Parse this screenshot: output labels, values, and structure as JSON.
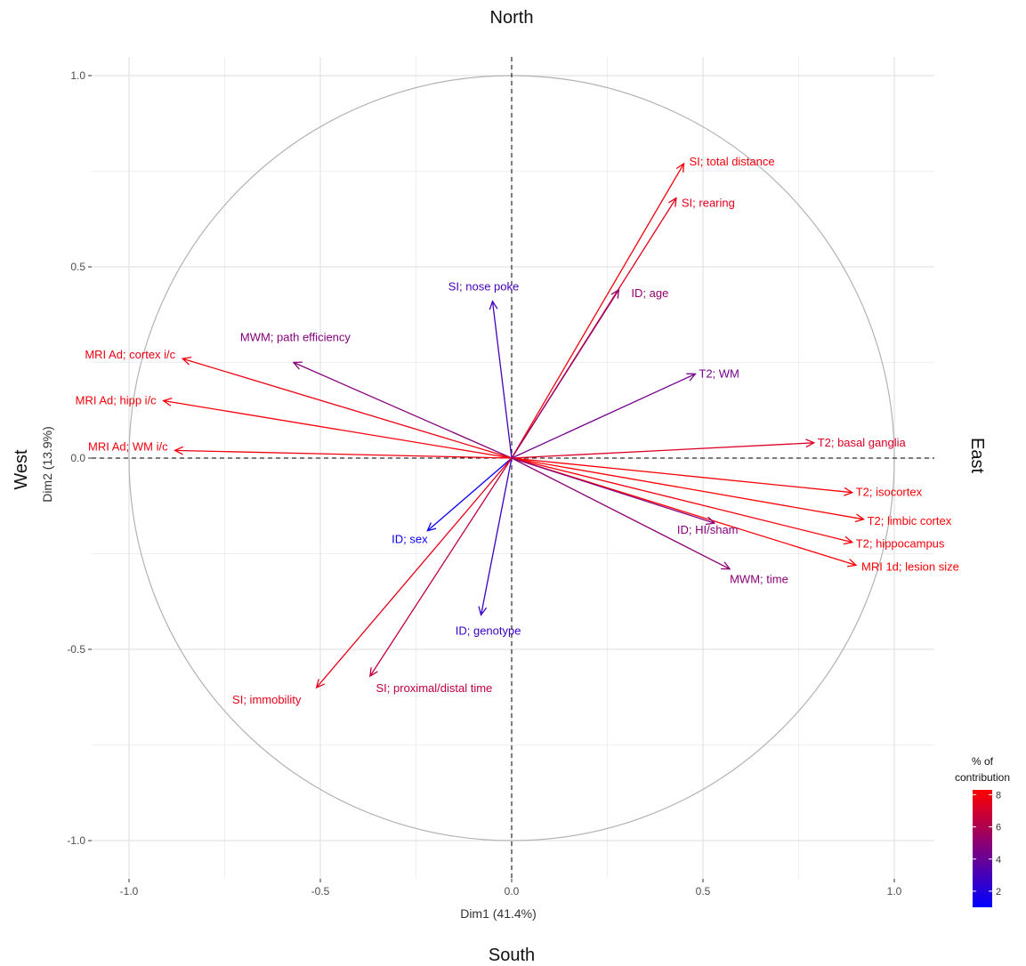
{
  "chart_data": {
    "type": "pca-correlation-circle",
    "xlabel": "Dim1 (41.4%)",
    "ylabel": "Dim2 (13.9%)",
    "xlim": [
      -1.0,
      1.0
    ],
    "ylim": [
      -1.0,
      1.0
    ],
    "x_ticks": [
      {
        "value": -1.0,
        "label": "-1.0"
      },
      {
        "value": -0.5,
        "label": "-0.5"
      },
      {
        "value": 0.0,
        "label": "0.0"
      },
      {
        "value": 0.5,
        "label": "0.5"
      },
      {
        "value": 1.0,
        "label": "1.0"
      }
    ],
    "y_ticks": [
      {
        "value": 1.0,
        "label": "1.0"
      },
      {
        "value": 0.5,
        "label": "0.5"
      },
      {
        "value": 0.0,
        "label": "0.0"
      },
      {
        "value": -0.5,
        "label": "-0.5"
      },
      {
        "value": -1.0,
        "label": "-1.0"
      }
    ],
    "grid": true,
    "directions": {
      "north": "North",
      "south": "South",
      "west": "West",
      "east": "East"
    },
    "legend": {
      "title_line1": "% of",
      "title_line2": "contribution",
      "placement": "bottom-right",
      "range": [
        1,
        8.3
      ],
      "ticks": [
        {
          "value": 2,
          "label": "2"
        },
        {
          "value": 4,
          "label": "4"
        },
        {
          "value": 6,
          "label": "6"
        },
        {
          "value": 8,
          "label": "8"
        }
      ],
      "color_low": "#0000ff",
      "color_high": "#ff0000"
    },
    "variables": [
      {
        "label": "SI; total distance",
        "x": 0.45,
        "y": 0.77,
        "contrib": 8.0
      },
      {
        "label": "SI; rearing",
        "x": 0.43,
        "y": 0.68,
        "contrib": 7.5
      },
      {
        "label": "ID; age",
        "x": 0.28,
        "y": 0.44,
        "contrib": 5.2
      },
      {
        "label": "SI; nose poke",
        "x": -0.05,
        "y": 0.41,
        "contrib": 3.0
      },
      {
        "label": "MWM; path efficiency",
        "x": -0.57,
        "y": 0.25,
        "contrib": 4.8
      },
      {
        "label": "MRI Ad; cortex i/c",
        "x": -0.86,
        "y": 0.26,
        "contrib": 7.8
      },
      {
        "label": "MRI Ad; hipp i/c",
        "x": -0.91,
        "y": 0.15,
        "contrib": 8.0
      },
      {
        "label": "MRI Ad; WM i/c",
        "x": -0.88,
        "y": 0.02,
        "contrib": 7.9
      },
      {
        "label": "T2; WM",
        "x": 0.48,
        "y": 0.22,
        "contrib": 4.3
      },
      {
        "label": "T2; basal ganglia",
        "x": 0.79,
        "y": 0.04,
        "contrib": 7.3
      },
      {
        "label": "T2; isocortex",
        "x": 0.89,
        "y": -0.09,
        "contrib": 8.1
      },
      {
        "label": "T2; limbic cortex",
        "x": 0.92,
        "y": -0.16,
        "contrib": 8.2
      },
      {
        "label": "T2; hippocampus",
        "x": 0.89,
        "y": -0.22,
        "contrib": 8.0
      },
      {
        "label": "MRI 1d; lesion size",
        "x": 0.9,
        "y": -0.28,
        "contrib": 8.2
      },
      {
        "label": "ID; HI/sham",
        "x": 0.53,
        "y": -0.17,
        "contrib": 4.8
      },
      {
        "label": "MWM; time",
        "x": 0.57,
        "y": -0.29,
        "contrib": 5.0
      },
      {
        "label": "ID; sex",
        "x": -0.22,
        "y": -0.19,
        "contrib": 1.3
      },
      {
        "label": "ID; genotype",
        "x": -0.08,
        "y": -0.41,
        "contrib": 2.6
      },
      {
        "label": "SI; immobility",
        "x": -0.51,
        "y": -0.6,
        "contrib": 7.6
      },
      {
        "label": "SI; proximal/distal time",
        "x": -0.37,
        "y": -0.57,
        "contrib": 6.5
      }
    ]
  }
}
